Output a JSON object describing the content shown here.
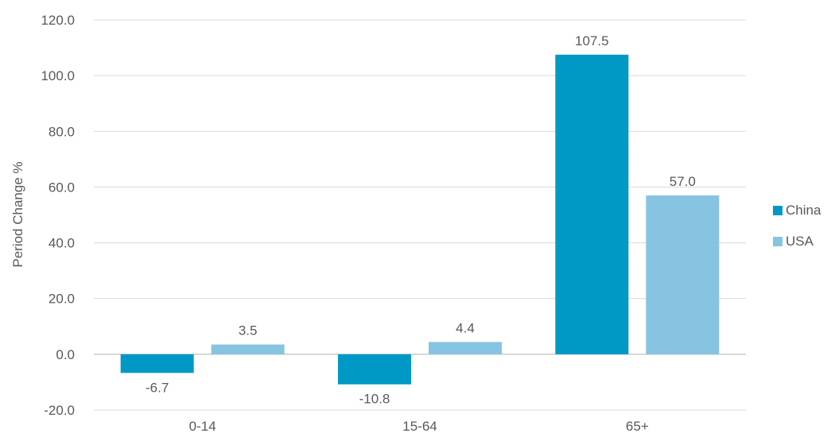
{
  "chart_data": {
    "type": "bar",
    "categories": [
      "0-14",
      "15-64",
      "65+"
    ],
    "series": [
      {
        "name": "China",
        "values": [
          -6.7,
          -10.8,
          107.5
        ],
        "color": "#0099c6"
      },
      {
        "name": "USA",
        "values": [
          3.5,
          4.4,
          57.0
        ],
        "color": "#86c4e2"
      }
    ],
    "data_labels": [
      [
        "-6.7",
        "-10.8",
        "107.5"
      ],
      [
        "3.5",
        "4.4",
        "57.0"
      ]
    ],
    "ylabel": "Period Change %",
    "xlabel": "",
    "title": "",
    "ylim": [
      -20,
      120
    ],
    "yticks": [
      "-20.0",
      "0.0",
      "20.0",
      "40.0",
      "60.0",
      "80.0",
      "100.0",
      "120.0"
    ],
    "grid": true,
    "legend_position": "right"
  }
}
